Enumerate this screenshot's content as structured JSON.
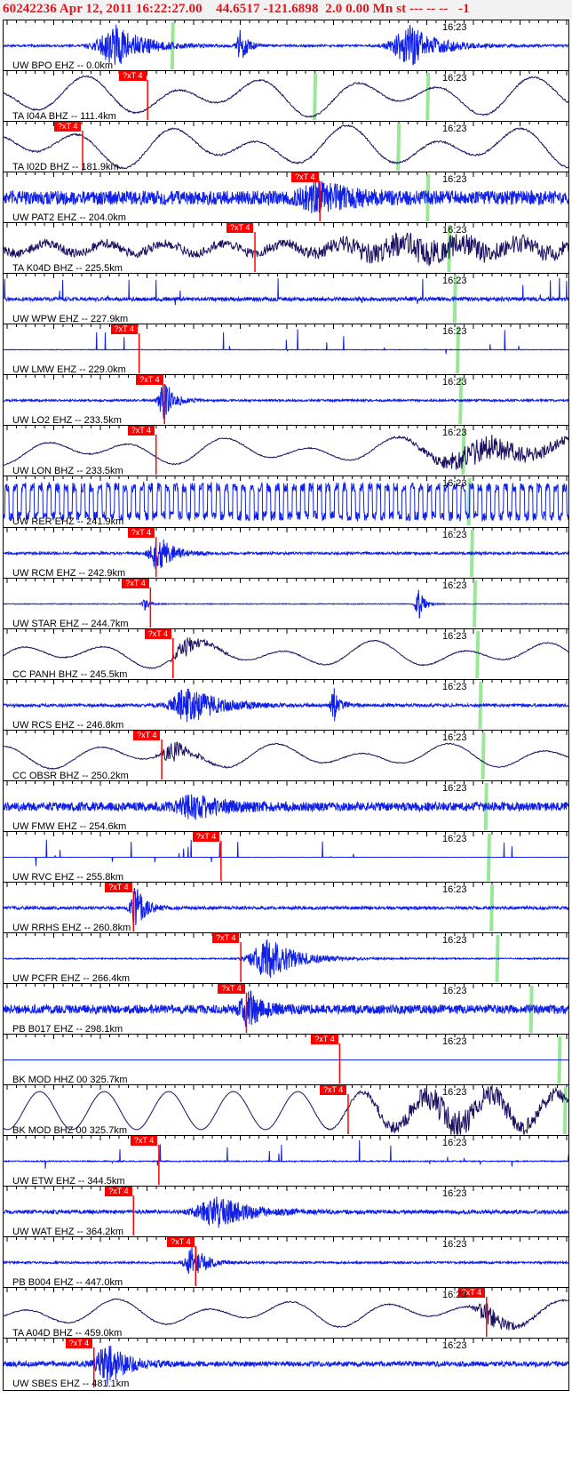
{
  "header": {
    "title": "60242236 Apr 12, 2011 16:22:27.00    44.6517 -121.6898  2.0 0.00 Mn st --- -- --   -1"
  },
  "colors": {
    "short_period": "#1020e6",
    "broadband": "#1a1060",
    "pick": "#ff0000",
    "arrival": "#98e898",
    "header_text": "#e8141b"
  },
  "pick_label": "?xT 4",
  "minute_label": "16:23",
  "traces": [
    {
      "label": "UW BPO EHZ -- 0.0km",
      "type": "sp",
      "amp": 0.25,
      "noise": 0.08,
      "pick": null,
      "green": 0.3,
      "bursts": [
        {
          "c": 0.2,
          "w": 0.06,
          "a": 1.0
        },
        {
          "c": 0.42,
          "w": 0.015,
          "a": 0.8
        },
        {
          "c": 0.72,
          "w": 0.06,
          "a": 1.0
        }
      ]
    },
    {
      "label": "TA I04A BHZ -- 111.4km",
      "type": "bb",
      "amp": 0.8,
      "pick": 0.255,
      "green": 0.552,
      "green2": 0.752,
      "bursts": []
    },
    {
      "label": "TA I02D BHZ -- 181.9km",
      "type": "bb",
      "amp": 0.85,
      "pick": 0.14,
      "green": 0.7,
      "bursts": []
    },
    {
      "label": "UW PAT2 EHZ -- 204.0km",
      "type": "sp",
      "amp": 0.55,
      "noise": 0.55,
      "pick": 0.56,
      "green": 0.752,
      "bursts": [
        {
          "c": 0.56,
          "w": 0.06,
          "a": 0.6
        }
      ]
    },
    {
      "label": "TA K04D BHZ -- 225.5km",
      "type": "bbn",
      "amp": 0.35,
      "pick": 0.445,
      "green": 0.79,
      "bursts": [
        {
          "c": 0.75,
          "w": 0.3,
          "a": 0.9
        }
      ]
    },
    {
      "label": "UW WPW EHZ -- 227.9km",
      "type": "spike",
      "amp": 0.2,
      "noise": 0.15,
      "pick": null,
      "green": 0.8,
      "bursts": []
    },
    {
      "label": "UW LMW EHZ -- 229.0km",
      "type": "spike",
      "amp": 0.1,
      "noise": 0.02,
      "pick": 0.24,
      "green": 0.805,
      "bursts": []
    },
    {
      "label": "UW LO2 EHZ -- 233.5km",
      "type": "sp",
      "amp": 0.1,
      "noise": 0.08,
      "pick": 0.285,
      "green": 0.81,
      "bursts": [
        {
          "c": 0.285,
          "w": 0.02,
          "a": 1.0
        }
      ]
    },
    {
      "label": "UW LON BHZ -- 233.5km",
      "type": "bb",
      "amp": 0.55,
      "pick": 0.27,
      "green": 0.815,
      "bursts": [
        {
          "c": 0.85,
          "w": 0.18,
          "a": 0.9
        }
      ]
    },
    {
      "label": "UW RER EHZ -- 241.9km",
      "type": "box",
      "amp": 0.75,
      "pick": null,
      "green": 0.825,
      "bursts": []
    },
    {
      "label": "UW RCM EHZ -- 242.9km",
      "type": "sp",
      "amp": 0.08,
      "noise": 0.1,
      "pick": 0.27,
      "green": 0.83,
      "bursts": [
        {
          "c": 0.275,
          "w": 0.03,
          "a": 0.9
        }
      ]
    },
    {
      "label": "UW STAR EHZ -- 244.7km",
      "type": "sp",
      "amp": 0.05,
      "noise": 0.03,
      "pick": 0.26,
      "green": 0.835,
      "bursts": [
        {
          "c": 0.25,
          "w": 0.01,
          "a": 0.3
        },
        {
          "c": 0.735,
          "w": 0.012,
          "a": 0.8
        }
      ]
    },
    {
      "label": "CC PANH BHZ -- 245.5km",
      "type": "bb",
      "amp": 0.55,
      "pick": 0.3,
      "green": 0.84,
      "bursts": [
        {
          "c": 0.32,
          "w": 0.04,
          "a": 0.7
        }
      ]
    },
    {
      "label": "UW RCS EHZ -- 246.8km",
      "type": "sp",
      "amp": 0.1,
      "noise": 0.12,
      "pick": null,
      "green": 0.845,
      "bursts": [
        {
          "c": 0.33,
          "w": 0.06,
          "a": 0.9
        },
        {
          "c": 0.585,
          "w": 0.012,
          "a": 0.8
        }
      ]
    },
    {
      "label": "CC OBSR BHZ -- 250.2km",
      "type": "bb",
      "amp": 0.5,
      "pick": 0.28,
      "green": 0.85,
      "bursts": [
        {
          "c": 0.3,
          "w": 0.04,
          "a": 0.7
        }
      ]
    },
    {
      "label": "UW FMW EHZ -- 254.6km",
      "type": "sp",
      "amp": 0.35,
      "noise": 0.35,
      "pick": null,
      "green": 0.855,
      "bursts": [
        {
          "c": 0.34,
          "w": 0.06,
          "a": 0.5
        }
      ]
    },
    {
      "label": "UW RVC EHZ -- 255.8km",
      "type": "spike",
      "amp": 0.05,
      "noise": 0.01,
      "pick": 0.385,
      "green": 0.86,
      "bursts": []
    },
    {
      "label": "UW RRHS EHZ -- 260.8km",
      "type": "sp",
      "amp": 0.15,
      "noise": 0.12,
      "pick": 0.23,
      "green": 0.865,
      "bursts": [
        {
          "c": 0.235,
          "w": 0.02,
          "a": 1.0
        }
      ]
    },
    {
      "label": "UW PCFR EHZ -- 266.4km",
      "type": "sp",
      "amp": 0.05,
      "noise": 0.05,
      "pick": 0.42,
      "green": 0.875,
      "bursts": [
        {
          "c": 0.47,
          "w": 0.06,
          "a": 1.0
        }
      ]
    },
    {
      "label": "PB B017 EHZ -- 298.1km",
      "type": "sp",
      "amp": 0.35,
      "noise": 0.35,
      "pick": 0.43,
      "green": 0.935,
      "bursts": [
        {
          "c": 0.435,
          "w": 0.03,
          "a": 0.8
        }
      ]
    },
    {
      "label": "BK MOD HHZ 00 325.7km",
      "type": "flat",
      "amp": 0.0,
      "pick": 0.595,
      "green": 0.985,
      "bursts": []
    },
    {
      "label": "BK MOD BHZ 00 325.7km",
      "type": "bbs",
      "amp": 0.75,
      "pick": 0.61,
      "green": 0.995,
      "bursts": [
        {
          "c": 0.8,
          "w": 0.25,
          "a": 0.9
        }
      ]
    },
    {
      "label": "UW ETW EHZ -- 344.5km",
      "type": "spike",
      "amp": 0.08,
      "noise": 0.04,
      "pick": 0.275,
      "green": null,
      "bursts": []
    },
    {
      "label": "UW WAT EHZ -- 364.2km",
      "type": "sp",
      "amp": 0.08,
      "noise": 0.15,
      "pick": 0.23,
      "green": null,
      "bursts": [
        {
          "c": 0.38,
          "w": 0.07,
          "a": 0.7
        }
      ]
    },
    {
      "label": "PB B004 EHZ -- 447.0km",
      "type": "sp",
      "amp": 0.1,
      "noise": 0.08,
      "pick": 0.34,
      "green": null,
      "bursts": [
        {
          "c": 0.335,
          "w": 0.025,
          "a": 1.0
        }
      ]
    },
    {
      "label": "TA A04D BHZ -- 459.0km",
      "type": "bb",
      "amp": 0.55,
      "pick": 0.855,
      "green": null,
      "bursts": [
        {
          "c": 0.86,
          "w": 0.05,
          "a": 0.7
        }
      ]
    },
    {
      "label": "UW SBES EHZ -- 481.1km",
      "type": "sp",
      "amp": 0.2,
      "noise": 0.2,
      "pick": 0.16,
      "green": null,
      "bursts": [
        {
          "c": 0.185,
          "w": 0.04,
          "a": 1.0
        }
      ]
    }
  ]
}
